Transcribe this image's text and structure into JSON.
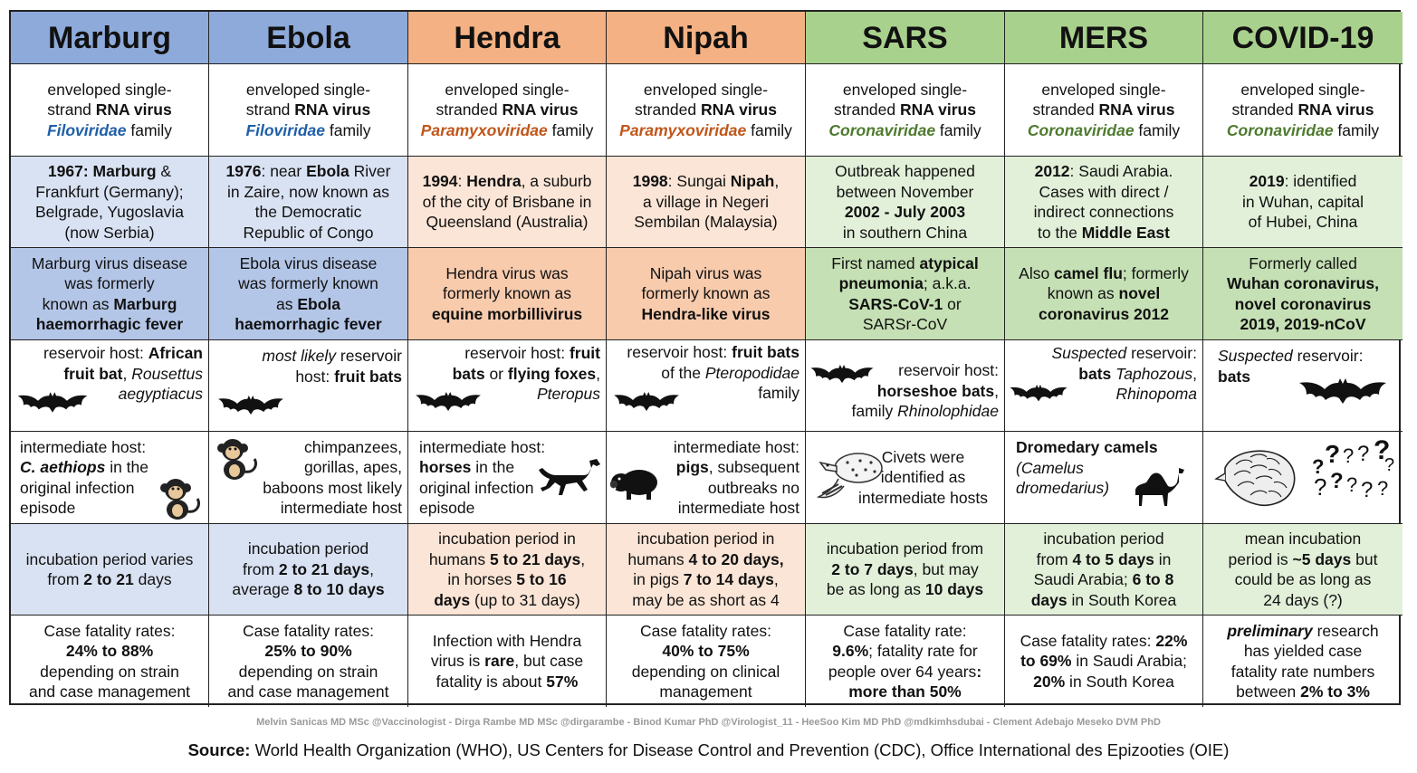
{
  "colors": {
    "blue_header": "#8eaadb",
    "blue_light": "#d9e2f3",
    "blue_mid": "#b4c6e7",
    "orange_header": "#f4b183",
    "orange_light": "#fbe5d6",
    "orange_mid": "#f8cbad",
    "green_header": "#a9d18e",
    "green_light": "#e2f0d9",
    "green_mid": "#c5e0b4",
    "filo": "#1f5fa8",
    "para": "#c0561a",
    "coro": "#4e7a2e"
  },
  "headers": [
    "Marburg",
    "Ebola",
    "Hendra",
    "Nipah",
    "SARS",
    "MERS",
    "COVID-19"
  ],
  "classification": {
    "marburg": {
      "l1": "enveloped single-",
      "l2a": "strand ",
      "l2b": "RNA virus",
      "fam": "Filoviridae",
      "tail": " family"
    },
    "ebola": {
      "l1": "enveloped single-",
      "l2a": "strand ",
      "l2b": "RNA virus",
      "fam": "Filoviridae",
      "tail": " family"
    },
    "hendra": {
      "l1": "enveloped single-",
      "l2a": "stranded ",
      "l2b": "RNA virus",
      "fam": "Paramyxoviridae",
      "tail": " family"
    },
    "nipah": {
      "l1": "enveloped single-",
      "l2a": "stranded ",
      "l2b": "RNA virus",
      "fam": "Paramyxoviridae",
      "tail": " family"
    },
    "sars": {
      "l1": "enveloped single-",
      "l2a": "stranded ",
      "l2b": "RNA virus",
      "fam": "Coronaviridae",
      "tail": " family"
    },
    "mers": {
      "l1": "enveloped single-",
      "l2a": "stranded ",
      "l2b": "RNA virus",
      "fam": "Coronaviridae",
      "tail": " family"
    },
    "covid": {
      "l1": "enveloped single-",
      "l2a": "stranded ",
      "l2b": "RNA virus",
      "fam": "Coronaviridae",
      "tail": " family"
    }
  },
  "origin": {
    "marburg": {
      "a": "1967: Marburg",
      "b": " &",
      "c": "Frankfurt (Germany);",
      "d": "Belgrade, Yugoslavia",
      "e": "(now Serbia)"
    },
    "ebola": {
      "a": "1976",
      "b": ": near ",
      "c": "Ebola",
      "d": " River",
      "e": "in Zaire, now known as",
      "f": "the Democratic",
      "g": "Republic of Congo"
    },
    "hendra": {
      "a": "1994",
      "b": ": ",
      "c": "Hendra",
      "d": ", a suburb",
      "e": "of the city of Brisbane in",
      "f": "Queensland (Australia)"
    },
    "nipah": {
      "a": "1998",
      "b": ": Sungai ",
      "c": "Nipah",
      "d": ",",
      "e": "a village in Negeri",
      "f": "Sembilan (Malaysia)"
    },
    "sars": {
      "a": "Outbreak happened",
      "b": "between November",
      "c": "2002 - July 2003",
      "d": "in southern China"
    },
    "mers": {
      "a": "2012",
      "b": ": Saudi Arabia.",
      "c": "Cases with direct /",
      "d": "indirect connections",
      "e": "to the ",
      "f": "Middle East"
    },
    "covid": {
      "a": "2019",
      "b": ": identified",
      "c": "in Wuhan, capital",
      "d": "of Hubei, China"
    }
  },
  "names": {
    "marburg": {
      "a": "Marburg virus disease",
      "b": "was formerly",
      "c": "known as ",
      "d": "Marburg",
      "e": "haemorrhagic fever"
    },
    "ebola": {
      "a": "Ebola virus disease",
      "b": "was formerly known",
      "c": "as ",
      "d": "Ebola",
      "e": "haemorrhagic fever"
    },
    "hendra": {
      "a": "Hendra virus was",
      "b": "formerly known as",
      "c": "equine morbillivirus"
    },
    "nipah": {
      "a": "Nipah virus was",
      "b": "formerly known as",
      "c": "Hendra-like virus"
    },
    "sars": {
      "a": "First named ",
      "b": "atypical",
      "c": "pneumonia",
      "d": "; a.k.a.",
      "e": "SARS-CoV-1",
      "f": " or",
      "g": "SARSr-CoV"
    },
    "mers": {
      "a": "Also ",
      "b": "camel flu",
      "c": "; formerly",
      "d": "known as ",
      "e": "novel",
      "f": "coronavirus 2012"
    },
    "covid": {
      "a": "Formerly called",
      "b": "Wuhan coronavirus,",
      "c": "novel coronavirus",
      "d": "2019, 2019-nCoV"
    }
  },
  "reservoir": {
    "marburg": {
      "a": "reservoir host: ",
      "b": "African",
      "c": "fruit bat",
      "d": ", ",
      "e": "Rousettus",
      "f": "aegyptiacus"
    },
    "ebola": {
      "a": "most likely",
      "b": " reservoir",
      "c": "host: ",
      "d": "fruit bats"
    },
    "hendra": {
      "a": "reservoir host: ",
      "b": "fruit",
      "c": "bats",
      "d": " or ",
      "e": "flying foxes",
      "f": ",",
      "g": "Pteropus"
    },
    "nipah": {
      "a": "reservoir host: ",
      "b": "fruit bats",
      "c": "of the ",
      "d": "Pteropodidae",
      "e": "family"
    },
    "sars": {
      "a": "reservoir host:",
      "b": "horseshoe bats",
      "c": ",",
      "d": "family ",
      "e": "Rhinolophidae"
    },
    "mers": {
      "a": "Suspected",
      "b": " reservoir:",
      "c": "bats",
      "d": " Taphozous",
      "e": ",",
      "f": "Rhinopoma"
    },
    "covid": {
      "a": "Suspected",
      "b": " reservoir:",
      "c": "bats"
    }
  },
  "intermediate": {
    "marburg": {
      "a": "intermediate host:",
      "b": "C. aethiops",
      "c": " in the",
      "d": "original infection",
      "e": "episode"
    },
    "ebola": {
      "a": "chimpanzees,",
      "b": "gorillas, apes,",
      "c": "baboons most likely",
      "d": "intermediate host"
    },
    "hendra": {
      "a": "intermediate host:",
      "b": "horses",
      "c": " in the",
      "d": "original infection",
      "e": "episode"
    },
    "nipah": {
      "a": "intermediate host:",
      "b": "pigs",
      "c": ", subsequent",
      "d": "outbreaks no",
      "e": "intermediate host"
    },
    "sars": {
      "a": "Civets were",
      "b": "identified as",
      "c": "intermediate hosts"
    },
    "mers": {
      "a": "Dromedary camels",
      "b": "(Camelus",
      "c": "dromedarius)"
    },
    "covid": {
      "q": "?"
    }
  },
  "incubation": {
    "marburg": {
      "a": "incubation period varies",
      "b": "from ",
      "c": "2 to 21",
      "d": " days"
    },
    "ebola": {
      "a": "incubation period",
      "b": "from ",
      "c": "2 to 21 days",
      "d": ",",
      "e": "average ",
      "f": "8 to 10 days"
    },
    "hendra": {
      "a": "incubation period in",
      "b": "humans ",
      "c": "5 to 21 days",
      "d": ",",
      "e": "in horses ",
      "f": "5 to 16",
      "g": "days",
      "h": " (up to 31 days)"
    },
    "nipah": {
      "a": "incubation period in",
      "b": "humans ",
      "c": "4 to 20 days,",
      "d": "in pigs ",
      "e": "7 to 14 days",
      "f": ",",
      "g": "may be as short as 4"
    },
    "sars": {
      "a": "incubation period from",
      "b": "2 to 7 days",
      "c": ", but may",
      "d": "be as long as ",
      "e": "10 days"
    },
    "mers": {
      "a": "incubation period",
      "b": "from ",
      "c": "4 to 5 days",
      "d": " in",
      "e": "Saudi Arabia; ",
      "f": "6 to 8",
      "g": "days",
      "h": " in South Korea"
    },
    "covid": {
      "a": "mean incubation",
      "b": "period is ",
      "c": "~5 days",
      "d": " but",
      "e": "could be as long as",
      "f": "24 days (?)"
    }
  },
  "fatality": {
    "marburg": {
      "a": "Case fatality rates:",
      "b": "24% to 88%",
      "c": "depending on strain",
      "d": "and case management"
    },
    "ebola": {
      "a": "Case fatality rates:",
      "b": "25% to 90%",
      "c": "depending on strain",
      "d": "and case management"
    },
    "hendra": {
      "a": "Infection with Hendra",
      "b": "virus is ",
      "c": "rare",
      "d": ", but case",
      "e": "fatality is about ",
      "f": "57%"
    },
    "nipah": {
      "a": "Case fatality rates:",
      "b": "40% to 75%",
      "c": "depending on clinical",
      "d": "management"
    },
    "sars": {
      "a": "Case fatality rate:",
      "b": "9.6%",
      "c": "; fatality rate for",
      "d": "people over 64 years",
      "e": ":",
      "f": "more than 50%"
    },
    "mers": {
      "a": "Case fatality rates: ",
      "b": "22%",
      "c": "to 69%",
      "d": " in Saudi Arabia;",
      "e": "20%",
      "f": " in South Korea"
    },
    "covid": {
      "a": "preliminary",
      "b": " research",
      "c": "has yielded case",
      "d": "fatality rate numbers",
      "e": "between ",
      "f": "2% to 3%"
    }
  },
  "footer": {
    "credits": "Melvin Sanicas MD MSc @Vaccinologist - Dirga Rambe MD MSc @dirgarambe - Binod Kumar PhD @Virologist_11 - HeeSoo Kim MD PhD @mdkimhsdubai - Clement Adebajo Meseko DVM PhD",
    "source_label": "Source:",
    "source_text": " World Health Organization (WHO), US Centers for Disease Control and Prevention (CDC), Office International des Epizooties (OIE)"
  },
  "icons": {
    "bat": "bat-icon",
    "monkey": "monkey-icon",
    "horse": "horse-icon",
    "boar": "boar-icon",
    "civet": "civet-icon",
    "camel": "camel-icon",
    "pangolin": "pangolin-icon",
    "question": "question-marks-icon"
  }
}
